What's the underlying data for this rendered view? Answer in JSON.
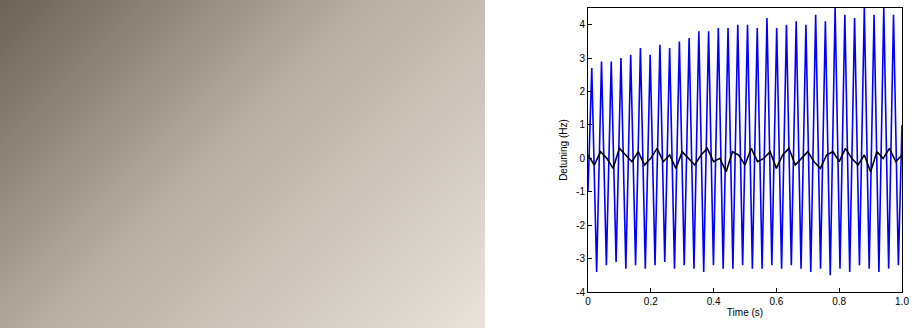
{
  "chart_data": {
    "type": "line",
    "x_label": "Time (s)",
    "y_label": "Detuning (Hz)",
    "xlim": [
      0,
      1
    ],
    "ylim": [
      -4,
      4.5
    ],
    "xticks": [
      0,
      0.2,
      0.4,
      0.6,
      0.8,
      {
        "value": 1,
        "label": "1.0"
      }
    ],
    "yticks": [
      -4,
      -3,
      -2,
      -1,
      0,
      1,
      2,
      3,
      4
    ],
    "grid": false,
    "series": [
      {
        "color": "#0000ff",
        "x": [
          0,
          0.012,
          0.0275,
          0.043,
          0.0585,
          0.074,
          0.0895,
          0.105,
          0.1205,
          0.136,
          0.1515,
          0.167,
          0.1825,
          0.198,
          0.2135,
          0.229,
          0.2445,
          0.26,
          0.2755,
          0.291,
          0.3065,
          0.322,
          0.3375,
          0.353,
          0.3685,
          0.384,
          0.3995,
          0.415,
          0.4305,
          0.446,
          0.4615,
          0.477,
          0.4925,
          0.508,
          0.5235,
          0.539,
          0.5545,
          0.57,
          0.5855,
          0.601,
          0.6165,
          0.632,
          0.6475,
          0.663,
          0.6785,
          0.694,
          0.7095,
          0.725,
          0.7405,
          0.756,
          0.7715,
          0.787,
          0.8025,
          0.818,
          0.8335,
          0.849,
          0.8645,
          0.88,
          0.8955,
          0.911,
          0.9265,
          0.942,
          0.9575,
          0.973,
          0.9885,
          1
        ],
        "values": [
          -1.0,
          2.7,
          -3.4,
          2.9,
          -3.2,
          2.9,
          -3.1,
          3.0,
          -3.3,
          3.1,
          -3.2,
          3.3,
          -3.3,
          3.1,
          -3.2,
          3.4,
          -3.1,
          3.3,
          -3.3,
          3.5,
          -3.2,
          3.6,
          -3.3,
          3.8,
          -3.4,
          3.8,
          -3.2,
          3.9,
          -3.3,
          3.9,
          -3.3,
          4.0,
          -3.2,
          4.0,
          -3.3,
          3.9,
          -3.3,
          4.2,
          -3.2,
          3.9,
          -3.3,
          4.0,
          -3.2,
          4.1,
          -3.3,
          4.0,
          -3.4,
          4.3,
          -3.3,
          4.1,
          -3.5,
          4.5,
          -3.3,
          4.3,
          -3.4,
          4.2,
          -3.2,
          4.5,
          -3.3,
          4.3,
          -3.4,
          4.5,
          -3.3,
          4.3,
          -3.2,
          1.0
        ]
      },
      {
        "color": "#000000",
        "x": [
          0,
          0.02,
          0.04,
          0.06,
          0.08,
          0.1,
          0.12,
          0.14,
          0.16,
          0.18,
          0.2,
          0.22,
          0.24,
          0.26,
          0.28,
          0.3,
          0.32,
          0.34,
          0.36,
          0.38,
          0.4,
          0.42,
          0.44,
          0.46,
          0.48,
          0.5,
          0.52,
          0.54,
          0.56,
          0.58,
          0.6,
          0.62,
          0.64,
          0.66,
          0.68,
          0.7,
          0.72,
          0.74,
          0.76,
          0.78,
          0.8,
          0.82,
          0.84,
          0.86,
          0.88,
          0.9,
          0.92,
          0.94,
          0.96,
          0.98,
          1
        ],
        "values": [
          0.1,
          -0.2,
          0.2,
          0.0,
          -0.3,
          0.3,
          0.1,
          -0.1,
          0.2,
          -0.2,
          0.0,
          0.3,
          -0.1,
          0.1,
          -0.3,
          0.2,
          0.0,
          -0.2,
          0.1,
          0.3,
          -0.1,
          0.0,
          -0.4,
          0.2,
          0.1,
          -0.2,
          0.3,
          -0.1,
          0.0,
          0.2,
          -0.3,
          0.1,
          0.3,
          -0.2,
          0.0,
          0.2,
          -0.1,
          -0.3,
          0.1,
          0.2,
          -0.1,
          0.3,
          0.0,
          -0.2,
          0.1,
          -0.4,
          0.2,
          0.0,
          0.3,
          -0.1,
          0.1
        ]
      }
    ]
  }
}
